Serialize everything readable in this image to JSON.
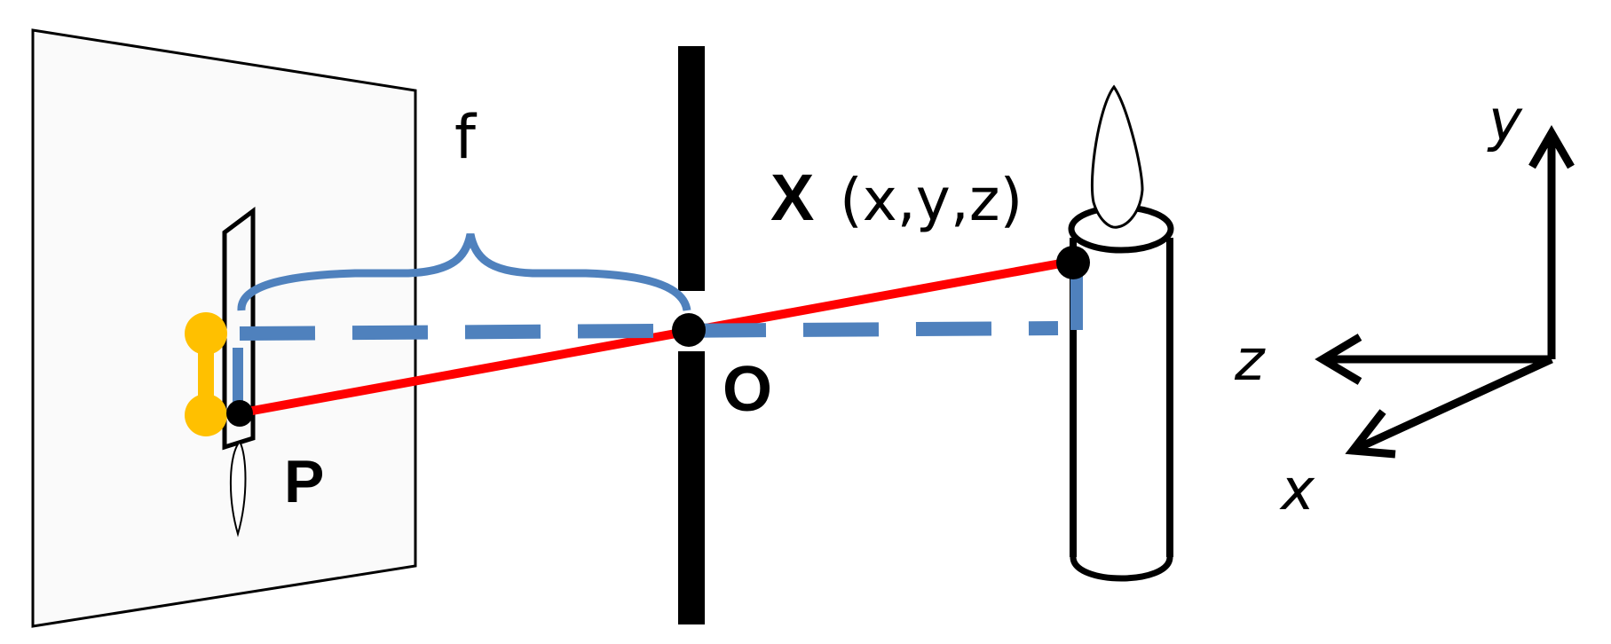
{
  "labels": {
    "focal_length": "f",
    "world_point_symbol": "X",
    "world_point_coords": "(x,y,z)",
    "optical_center": "O",
    "image_point": "P",
    "axis_y": "y",
    "axis_z": "z",
    "axis_x": "x"
  },
  "colors": {
    "projection_ray": "#ff0000",
    "guide_lines": "#4f81bd",
    "image_segment": "#ffc000",
    "ink": "#000000",
    "image_plane_fill": "#fafafa"
  }
}
